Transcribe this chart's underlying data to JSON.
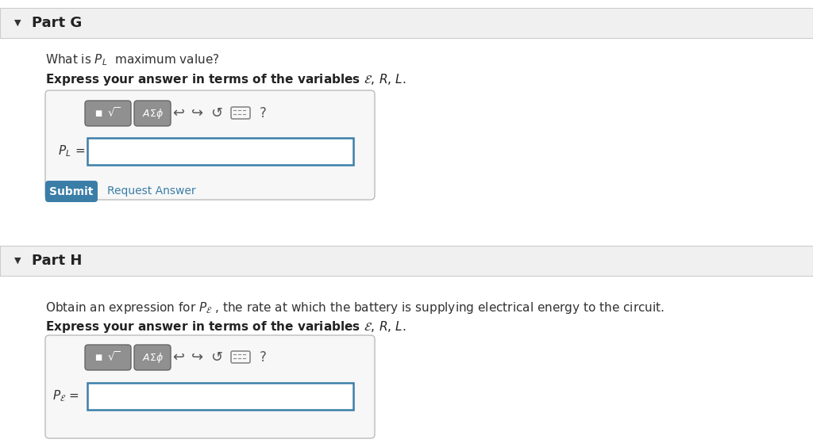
{
  "bg_color": "#ffffff",
  "section_header_bg": "#f0f0f0",
  "section_border_color": "#cccccc",
  "part_g_title": "Part G",
  "part_h_title": "Part H",
  "submit_bg": "#3a7ea8",
  "submit_text": "Submit",
  "submit_text_color": "#ffffff",
  "request_answer_text": "Request Answer",
  "request_answer_color": "#3a7ea8",
  "input_border_color": "#3a7ea8",
  "input_bg": "#ffffff",
  "toolbar_bg": "#888888",
  "arrow_color": "#555555",
  "triangle_color": "#333333",
  "font_size_title": 13,
  "font_size_body": 11,
  "font_size_bold": 11
}
